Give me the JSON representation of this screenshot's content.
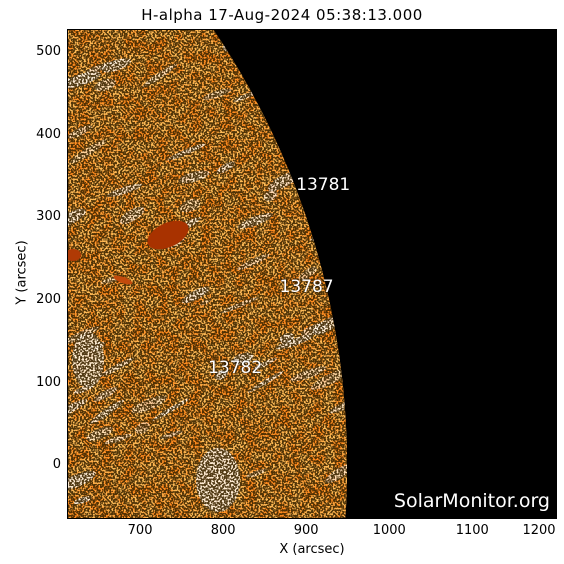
{
  "title": "H-alpha 17-Aug-2024 05:38:13.000",
  "x_axis": {
    "label": "X (arcsec)",
    "range": [
      612,
      1202
    ],
    "ticks": [
      "700",
      "800",
      "900",
      "1000",
      "1100",
      "1200"
    ]
  },
  "y_axis": {
    "label": "Y (arcsec)",
    "range": [
      -65,
      528
    ],
    "ticks": [
      "0",
      "100",
      "200",
      "300",
      "400",
      "500"
    ]
  },
  "active_regions": [
    {
      "number": "13781",
      "x": 918,
      "y": 338
    },
    {
      "number": "13787",
      "x": 898,
      "y": 215
    },
    {
      "number": "13782",
      "x": 812,
      "y": 117
    }
  ],
  "watermark": "SolarMonitor.org",
  "colors": {
    "disk": "#ff8a1e",
    "disk_bright": "#fff3e0",
    "background": "#000000",
    "plage_dark": "#a83200"
  }
}
